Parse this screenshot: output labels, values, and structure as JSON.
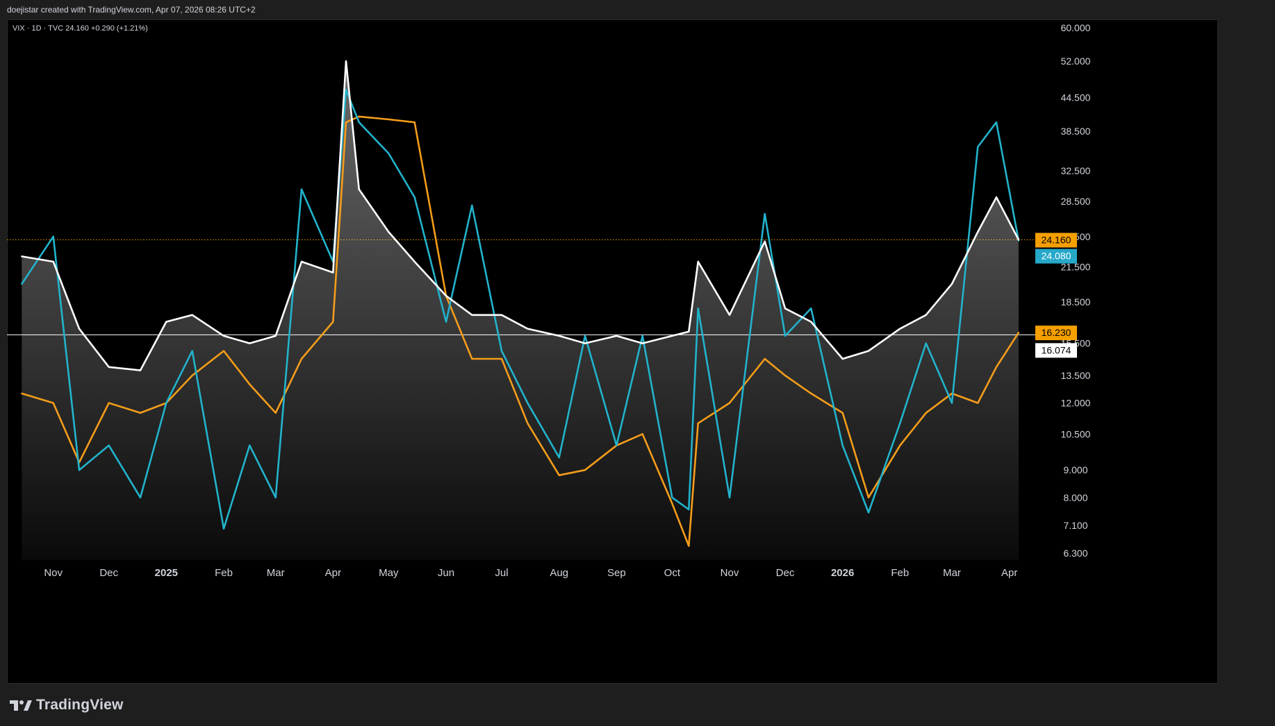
{
  "header": {
    "credit": "doejistar created with TradingView.com, Apr 07, 2026 08:26 UTC+2"
  },
  "legend": {
    "text": "VIX · 1D · TVC  24.160  +0.290 (+1.21%)"
  },
  "footer": {
    "brand": "TradingView",
    "logo_icon": "tradingview-logo-icon"
  },
  "colors": {
    "background": "#000000",
    "white_series": "#ffffff",
    "cyan_series": "#22b3cc",
    "orange_series": "#f49d1a",
    "badge_orange": "#f59f00",
    "badge_cyan": "#26a8c9",
    "badge_white": "#ffffff"
  },
  "chart_data": {
    "type": "line",
    "scale": "log",
    "title": "",
    "ylim": [
      6.0,
      63.0
    ],
    "y_ticks": [
      "60.000",
      "52.000",
      "44.500",
      "38.500",
      "32.500",
      "28.500",
      "24.500",
      "21.500",
      "18.500",
      "15.500",
      "13.500",
      "12.000",
      "10.500",
      "9.000",
      "8.000",
      "7.100",
      "6.300"
    ],
    "x_ticks": [
      "Nov",
      "Dec",
      "2025",
      "Feb",
      "Mar",
      "Apr",
      "May",
      "Jun",
      "Jul",
      "Aug",
      "Sep",
      "Oct",
      "Nov",
      "Dec",
      "2026",
      "Feb",
      "Mar",
      "Apr"
    ],
    "x": [
      "2024-10-15",
      "2024-11-01",
      "2024-11-15",
      "2024-12-01",
      "2024-12-18",
      "2025-01-01",
      "2025-01-15",
      "2025-02-01",
      "2025-02-15",
      "2025-03-01",
      "2025-03-15",
      "2025-04-01",
      "2025-04-08",
      "2025-04-15",
      "2025-05-01",
      "2025-05-15",
      "2025-06-01",
      "2025-06-15",
      "2025-07-01",
      "2025-07-15",
      "2025-08-01",
      "2025-08-15",
      "2025-09-01",
      "2025-09-15",
      "2025-10-01",
      "2025-10-10",
      "2025-10-15",
      "2025-11-01",
      "2025-11-20",
      "2025-12-01",
      "2025-12-15",
      "2026-01-01",
      "2026-01-15",
      "2026-02-01",
      "2026-02-15",
      "2026-03-01",
      "2026-03-15",
      "2026-03-25",
      "2026-04-06"
    ],
    "series": [
      {
        "color": "#ffffff",
        "values": [
          22.5,
          22.0,
          16.5,
          14.0,
          13.8,
          17.0,
          17.5,
          16.0,
          15.5,
          16.0,
          22.0,
          21.0,
          52.0,
          30.0,
          25.0,
          22.0,
          19.0,
          17.5,
          17.5,
          16.5,
          16.0,
          15.5,
          16.0,
          15.5,
          16.0,
          16.3,
          22.0,
          17.5,
          24.0,
          18.0,
          17.0,
          14.5,
          15.0,
          16.5,
          17.5,
          20.0,
          25.0,
          29.0,
          24.16
        ]
      },
      {
        "color": "#22b3cc",
        "values": [
          20.0,
          24.5,
          9.0,
          10.0,
          8.0,
          12.0,
          15.0,
          7.0,
          10.0,
          8.0,
          30.0,
          22.0,
          46.0,
          40.0,
          35.0,
          29.0,
          17.0,
          28.0,
          15.0,
          12.0,
          9.5,
          16.0,
          10.0,
          16.0,
          8.0,
          7.6,
          18.0,
          8.0,
          27.0,
          16.0,
          18.0,
          10.0,
          7.5,
          11.0,
          15.5,
          12.0,
          36.0,
          40.0,
          24.08
        ]
      },
      {
        "color": "#f49d1a",
        "values": [
          12.5,
          12.0,
          9.3,
          12.0,
          11.5,
          12.0,
          13.5,
          15.0,
          13.0,
          11.5,
          14.5,
          17.0,
          40.0,
          41.0,
          40.5,
          40.0,
          19.0,
          14.5,
          14.5,
          11.0,
          8.8,
          9.0,
          10.0,
          10.5,
          7.8,
          6.5,
          11.0,
          12.0,
          14.5,
          13.5,
          12.5,
          11.5,
          8.0,
          10.0,
          11.5,
          12.5,
          12.0,
          14.0,
          16.23
        ]
      }
    ],
    "price_labels": [
      {
        "text": "24.160",
        "value": 24.16,
        "style": "orange"
      },
      {
        "text": "24.080",
        "value": 24.08,
        "style": "cyan"
      },
      {
        "text": "16.230",
        "value": 16.23,
        "style": "orange"
      },
      {
        "text": "16.074",
        "value": 16.074,
        "style": "white"
      }
    ],
    "reference_lines": [
      {
        "value": 24.16,
        "style": "dotted-orange"
      },
      {
        "value": 16.074,
        "style": "solid-white"
      }
    ],
    "grid": false,
    "legend_position": "top-left"
  }
}
